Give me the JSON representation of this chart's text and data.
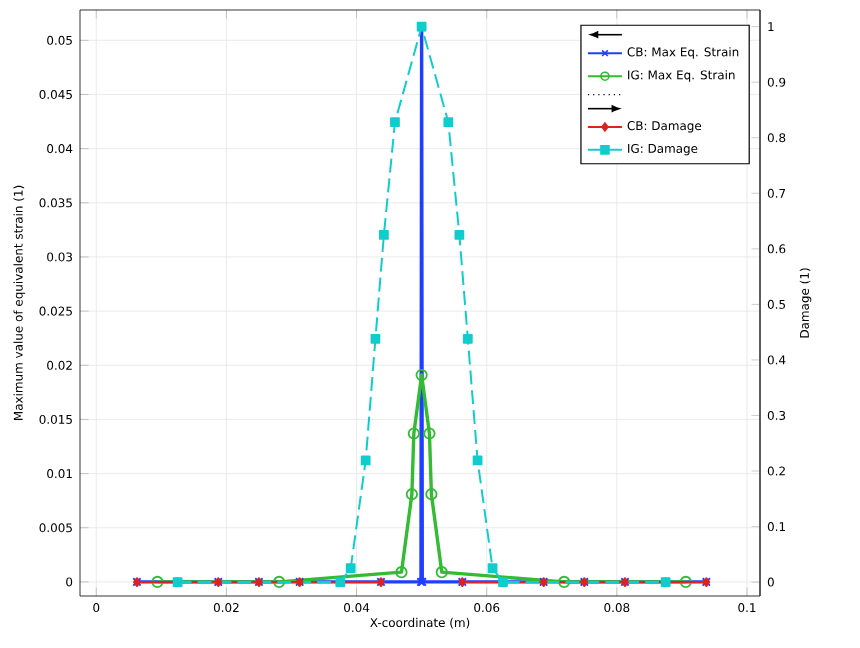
{
  "chart_data": {
    "type": "line",
    "xlabel": "X-coordinate (m)",
    "ylabel": "Maximum value of equivalent strain (1)",
    "y2label": "Damage (1)",
    "xlim": [
      -0.0025,
      0.102
    ],
    "xticks": [
      0,
      0.02,
      0.04,
      0.06,
      0.08,
      0.1
    ],
    "ylim": [
      -0.0013,
      0.0528
    ],
    "yticks": [
      0,
      0.005,
      0.01,
      0.015,
      0.02,
      0.025,
      0.03,
      0.035,
      0.04,
      0.045,
      0.05
    ],
    "y2lim": [
      -0.025,
      1.03
    ],
    "y2ticks": [
      0,
      0.1,
      0.2,
      0.3,
      0.4,
      0.5,
      0.6,
      0.7,
      0.8,
      0.9,
      1
    ],
    "grid": true,
    "legend": "top right",
    "series": [
      {
        "name": "CB: Max Eq. Strain",
        "color": "#1f3fff",
        "axis": "y",
        "marker": "cross",
        "line_style": "solid",
        "x": [
          0.00625,
          0.0125,
          0.01875,
          0.025,
          0.03125,
          0.0375,
          0.04375,
          0.0499,
          0.05,
          0.0501,
          0.05625,
          0.0625,
          0.06875,
          0.075,
          0.08125,
          0.0875,
          0.09375
        ],
        "values": [
          0,
          0,
          0,
          0,
          0,
          0,
          0,
          0,
          0.0512,
          0,
          0,
          0,
          0,
          0,
          0,
          0,
          0
        ]
      },
      {
        "name": "IG: Max Eq. Strain",
        "color": "#33bb33",
        "axis": "y",
        "marker": "circle",
        "line_style": "solid",
        "x": [
          0.0094,
          0.0281,
          0.0469,
          0.0485,
          0.0488,
          0.05,
          0.0512,
          0.0515,
          0.0531,
          0.0719,
          0.0906
        ],
        "values": [
          0,
          0,
          0.0009,
          0.0081,
          0.0137,
          0.0191,
          0.0137,
          0.0081,
          0.0009,
          0,
          0
        ]
      },
      {
        "name": "CB: Damage",
        "color": "#dd2222",
        "axis": "y2",
        "marker": "diamond",
        "line_style": "solid",
        "x": [
          0.00625,
          0.0125,
          0.01875,
          0.025,
          0.03125,
          0.0375,
          0.04375,
          0.05,
          0.05625,
          0.0625,
          0.06875,
          0.075,
          0.08125,
          0.0875,
          0.09375
        ],
        "values": [
          0,
          0,
          0,
          0,
          0,
          0,
          0,
          null,
          0,
          0,
          0,
          0,
          0,
          0,
          0
        ]
      },
      {
        "name": "IG: Damage",
        "color": "#11cccc",
        "axis": "y2",
        "marker": "square",
        "line_style": "dashed",
        "x": [
          0.0125,
          0.0375,
          0.0391,
          0.0414,
          0.0429,
          0.0442,
          0.0459,
          0.05,
          0.0541,
          0.0558,
          0.0571,
          0.0586,
          0.0609,
          0.0625,
          0.0875
        ],
        "values": [
          0,
          0,
          0.025,
          0.219,
          0.438,
          0.625,
          0.828,
          1,
          0.828,
          0.625,
          0.438,
          0.219,
          0.025,
          0,
          0
        ]
      }
    ]
  }
}
